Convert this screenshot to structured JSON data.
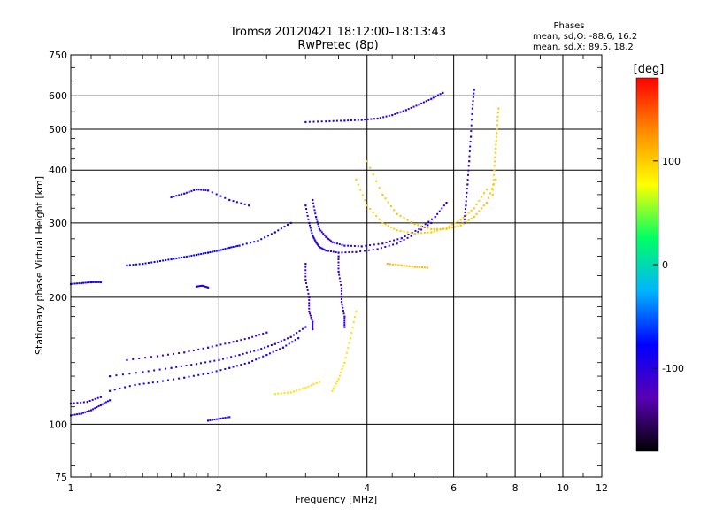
{
  "title": {
    "line1": "Tromsø 20120421 18:12:00–18:13:43",
    "line2": "RwPretec (8p)"
  },
  "phases": {
    "heading": "Phases",
    "line1": "mean, sd,O: -88.6, 16.2",
    "line2": "mean, sd,X:  89.5, 18.2"
  },
  "chart_data": {
    "type": "scatter",
    "xlabel": "Frequency [MHz]",
    "ylabel": "Stationary phase Virtual Height [km]",
    "x_scale": "log",
    "y_scale": "log",
    "xlim": [
      1,
      12
    ],
    "ylim": [
      75,
      750
    ],
    "x_ticks": [
      1,
      2,
      4,
      6,
      8,
      10,
      12
    ],
    "x_grid": [
      2,
      4,
      6,
      8,
      10
    ],
    "y_ticks": [
      75,
      100,
      200,
      300,
      400,
      500,
      600,
      750
    ],
    "y_grid": [
      100,
      200,
      300,
      400,
      500,
      600
    ],
    "grid": true,
    "colorbar": {
      "label": "[deg]",
      "range": [
        -180,
        180
      ],
      "ticks": [
        100,
        0,
        -100
      ],
      "colors": [
        "#000000",
        "#5a00b4",
        "#0000ff",
        "#00b4ff",
        "#00ff64",
        "#ffff00",
        "#ff8c00",
        "#ff0000"
      ]
    },
    "series": [
      {
        "phase": -100,
        "x": [
          1.0,
          1.05,
          1.1,
          1.15,
          1.2
        ],
        "y": [
          105,
          106,
          108,
          111,
          114
        ]
      },
      {
        "phase": -100,
        "x": [
          1.0,
          1.08,
          1.15
        ],
        "y": [
          112,
          113,
          116
        ]
      },
      {
        "phase": -90,
        "x": [
          1.2,
          1.35,
          1.5,
          1.7,
          1.9,
          2.1,
          2.3,
          2.5,
          2.7,
          2.9
        ],
        "y": [
          120,
          124,
          126,
          129,
          132,
          136,
          140,
          146,
          152,
          160
        ]
      },
      {
        "phase": -95,
        "x": [
          1.2,
          1.4,
          1.6,
          1.8,
          2.0,
          2.2,
          2.4,
          2.6,
          2.8,
          3.0
        ],
        "y": [
          130,
          133,
          136,
          139,
          142,
          146,
          150,
          155,
          161,
          170
        ]
      },
      {
        "phase": -110,
        "x": [
          1.3,
          1.5,
          1.7,
          1.9,
          2.1,
          2.3,
          2.5
        ],
        "y": [
          142,
          145,
          148,
          152,
          156,
          160,
          165
        ]
      },
      {
        "phase": -100,
        "x": [
          1.9,
          2.0,
          2.1
        ],
        "y": [
          102,
          103,
          104
        ]
      },
      {
        "phase": -90,
        "x": [
          1.0,
          1.05,
          1.1,
          1.15
        ],
        "y": [
          215,
          216,
          217,
          217
        ]
      },
      {
        "phase": -80,
        "x": [
          1.3,
          1.4,
          1.5,
          1.6,
          1.7,
          1.8,
          1.9,
          2.0,
          2.1,
          2.2,
          2.4,
          2.6,
          2.8
        ],
        "y": [
          238,
          240,
          243,
          246,
          249,
          252,
          255,
          258,
          262,
          265,
          272,
          285,
          300
        ]
      },
      {
        "phase": -100,
        "x": [
          1.8,
          1.85,
          1.9
        ],
        "y": [
          212,
          213,
          211
        ]
      },
      {
        "phase": -95,
        "x": [
          1.6,
          1.7,
          1.8,
          1.9,
          2.1,
          2.3
        ],
        "y": [
          345,
          352,
          360,
          358,
          340,
          330
        ]
      },
      {
        "phase": -95,
        "x": [
          3.0,
          3.3,
          3.6,
          3.9,
          4.2,
          4.5,
          4.8,
          5.1,
          5.4,
          5.7
        ],
        "y": [
          520,
          522,
          524,
          526,
          530,
          540,
          555,
          572,
          590,
          610
        ]
      },
      {
        "phase": -100,
        "x": [
          3.0,
          3.05,
          3.1,
          3.15,
          3.2,
          3.3,
          3.5,
          3.8,
          4.2,
          4.6,
          5.0,
          5.4
        ],
        "y": [
          330,
          300,
          280,
          270,
          263,
          258,
          255,
          256,
          260,
          268,
          282,
          300
        ]
      },
      {
        "phase": -105,
        "x": [
          3.1,
          3.15,
          3.2,
          3.3,
          3.4,
          3.6,
          3.9,
          4.3,
          4.7,
          5.1,
          5.5,
          5.8
        ],
        "y": [
          340,
          310,
          290,
          278,
          270,
          265,
          264,
          268,
          276,
          290,
          310,
          335
        ]
      },
      {
        "phase": -110,
        "x": [
          3.0,
          3.0,
          3.05,
          3.05,
          3.1,
          3.1
        ],
        "y": [
          240,
          220,
          200,
          185,
          175,
          168
        ]
      },
      {
        "phase": -105,
        "x": [
          3.5,
          3.5,
          3.55,
          3.55,
          3.6,
          3.6
        ],
        "y": [
          250,
          230,
          210,
          195,
          180,
          170
        ]
      },
      {
        "phase": -100,
        "x": [
          6.3,
          6.35,
          6.4,
          6.45,
          6.5,
          6.55,
          6.6
        ],
        "y": [
          300,
          330,
          370,
          420,
          480,
          560,
          620
        ]
      },
      {
        "phase": 90,
        "x": [
          3.4,
          3.5,
          3.6,
          3.7,
          3.8
        ],
        "y": [
          120,
          128,
          140,
          160,
          185
        ]
      },
      {
        "phase": 90,
        "x": [
          2.6,
          2.8,
          3.0,
          3.2
        ],
        "y": [
          118,
          119,
          122,
          126
        ]
      },
      {
        "phase": 100,
        "x": [
          3.8,
          4.0,
          4.3,
          4.6,
          5.0,
          5.4,
          5.8,
          6.2,
          6.6,
          7.0
        ],
        "y": [
          380,
          330,
          300,
          288,
          283,
          285,
          292,
          305,
          325,
          360
        ]
      },
      {
        "phase": 105,
        "x": [
          4.0,
          4.3,
          4.6,
          5.0,
          5.4,
          5.8,
          6.2,
          6.6,
          7.0,
          7.3
        ],
        "y": [
          420,
          350,
          315,
          298,
          290,
          290,
          296,
          310,
          335,
          380
        ]
      },
      {
        "phase": 100,
        "x": [
          7.2,
          7.25,
          7.3,
          7.35,
          7.4
        ],
        "y": [
          350,
          400,
          450,
          500,
          560
        ]
      },
      {
        "phase": 110,
        "x": [
          4.4,
          4.7,
          5.0,
          5.3
        ],
        "y": [
          240,
          238,
          236,
          235
        ]
      }
    ]
  }
}
